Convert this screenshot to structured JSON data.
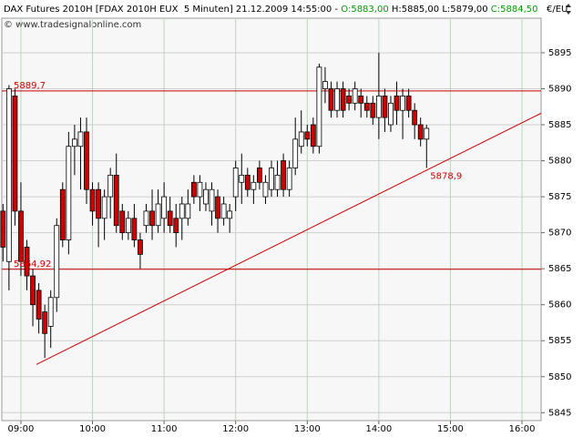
{
  "chart_data": {
    "type": "candlestick",
    "title": "DAX Futures 2010H [FDAX 2010H EUX  5 Minuten] 21.12.2009 14:55:00 -",
    "quote": [
      {
        "label": "O:5883,00",
        "color": "#009900"
      },
      {
        "label": "H:5885,00",
        "color": "#000000"
      },
      {
        "label": "L:5879,00",
        "color": "#000000"
      },
      {
        "label": "C:5884,50",
        "color": "#009900"
      }
    ],
    "watermark": "© www.tradesignalonline.com",
    "unit": "€/EU",
    "x": [
      525,
      530,
      535,
      540,
      545,
      550,
      555,
      560,
      565,
      570,
      575,
      580,
      585,
      590,
      595,
      600,
      605,
      610,
      615,
      620,
      625,
      630,
      635,
      640,
      645,
      650,
      655,
      660,
      665,
      670,
      675,
      680,
      685,
      690,
      695,
      700,
      705,
      710,
      715,
      720,
      725,
      730,
      735,
      740,
      745,
      750,
      755,
      760,
      765,
      770,
      775,
      780,
      785,
      790,
      795,
      800,
      805,
      810,
      815,
      820,
      825,
      830,
      835,
      840,
      845,
      850,
      855,
      860,
      865,
      870,
      875,
      880
    ],
    "open": [
      5873,
      5866,
      5889,
      5873,
      5868,
      5864,
      5862,
      5859,
      5857,
      5861,
      5876,
      5869,
      5882,
      5882,
      5884,
      5876,
      5876,
      5872,
      5875,
      5878,
      5873,
      5870,
      5872,
      5869,
      5871,
      5873,
      5871,
      5872,
      5873,
      5872,
      5872,
      5872,
      5877,
      5875,
      5874,
      5873,
      5875,
      5872,
      5872,
      5875,
      5877,
      5878,
      5876,
      5879,
      5875,
      5876,
      5876,
      5880,
      5876,
      5879,
      5882,
      5884,
      5885,
      5882,
      5890,
      5890,
      5887,
      5890,
      5889,
      5888,
      5889,
      5888,
      5888,
      5886,
      5889,
      5885,
      5889,
      5887,
      5889,
      5887,
      5885,
      5883
    ],
    "high": [
      5874,
      5890.5,
      5890,
      5877,
      5869,
      5865,
      5863,
      5860,
      5862,
      5872,
      5877,
      5884,
      5885,
      5886,
      5886,
      5877,
      5877,
      5876,
      5879,
      5881,
      5874,
      5873,
      5874,
      5870,
      5874,
      5876,
      5876,
      5877,
      5875,
      5874,
      5875,
      5876,
      5878,
      5878,
      5877,
      5877,
      5876,
      5875,
      5874,
      5880,
      5881,
      5879,
      5878,
      5880,
      5878,
      5880,
      5880,
      5881,
      5880,
      5886,
      5887,
      5885,
      5886,
      5893.5,
      5893,
      5891,
      5891,
      5891,
      5890,
      5891,
      5890,
      5889,
      5889,
      5895,
      5890,
      5889,
      5891,
      5890,
      5890,
      5888,
      5886,
      5885
    ],
    "low": [
      5866,
      5862,
      5871,
      5864,
      5862,
      5857,
      5856,
      5852.6,
      5854,
      5859,
      5868,
      5867,
      5878,
      5876,
      5874,
      5871,
      5868,
      5869,
      5872,
      5870,
      5869,
      5869,
      5868,
      5865,
      5870,
      5869,
      5870,
      5870,
      5870,
      5868,
      5869,
      5871,
      5874,
      5873,
      5873,
      5871,
      5870,
      5871,
      5870,
      5873,
      5874,
      5875,
      5874,
      5876,
      5874,
      5875,
      5875,
      5875,
      5875,
      5878,
      5881,
      5882,
      5881,
      5881,
      5888,
      5886,
      5886,
      5886,
      5887,
      5887,
      5886,
      5886,
      5885,
      5883,
      5884,
      5884,
      5885,
      5883,
      5886,
      5883,
      5882,
      5879
    ],
    "close": [
      5868,
      5890,
      5873,
      5866,
      5864,
      5860,
      5858,
      5856,
      5861,
      5871,
      5869,
      5882,
      5883,
      5884,
      5876,
      5873,
      5872,
      5875,
      5878,
      5871,
      5870,
      5872,
      5869,
      5867,
      5873,
      5871,
      5874,
      5875,
      5871,
      5870,
      5874,
      5874,
      5875,
      5877,
      5876,
      5876,
      5872,
      5874,
      5873,
      5879,
      5878,
      5876,
      5877,
      5877,
      5877,
      5879,
      5878,
      5876,
      5879,
      5883,
      5884,
      5883,
      5882,
      5893,
      5891,
      5887,
      5890,
      5887,
      5888,
      5890,
      5888,
      5887,
      5886,
      5889,
      5886,
      5888,
      5887,
      5889,
      5887,
      5885,
      5883,
      5884.5
    ],
    "up_color": "#ffffff",
    "down_color": "#cc0000",
    "line_color": "#cc0000",
    "xlim": [
      524,
      976
    ],
    "xticks": [
      {
        "value": 540,
        "label": "09:00"
      },
      {
        "value": 600,
        "label": "10:00"
      },
      {
        "value": 660,
        "label": "11:00"
      },
      {
        "value": 720,
        "label": "12:00"
      },
      {
        "value": 780,
        "label": "13:00"
      },
      {
        "value": 840,
        "label": "14:00"
      },
      {
        "value": 900,
        "label": "15:00"
      },
      {
        "value": 960,
        "label": "16:00"
      }
    ],
    "ylim": [
      5843.9,
      5899.8
    ],
    "yticks": [
      5845,
      5850,
      5855,
      5860,
      5865,
      5870,
      5875,
      5880,
      5885,
      5890,
      5895
    ],
    "grid": true,
    "hlines": [
      {
        "value": 5889.7,
        "label": "5889,7"
      },
      {
        "value": 5864.92,
        "label": "5864,92"
      }
    ],
    "trendline": {
      "x": [
        553,
        976
      ],
      "y": [
        5851.7,
        5886.6
      ]
    },
    "point_label": {
      "x": 880,
      "value": 5878.9,
      "label": "5878,9"
    }
  }
}
